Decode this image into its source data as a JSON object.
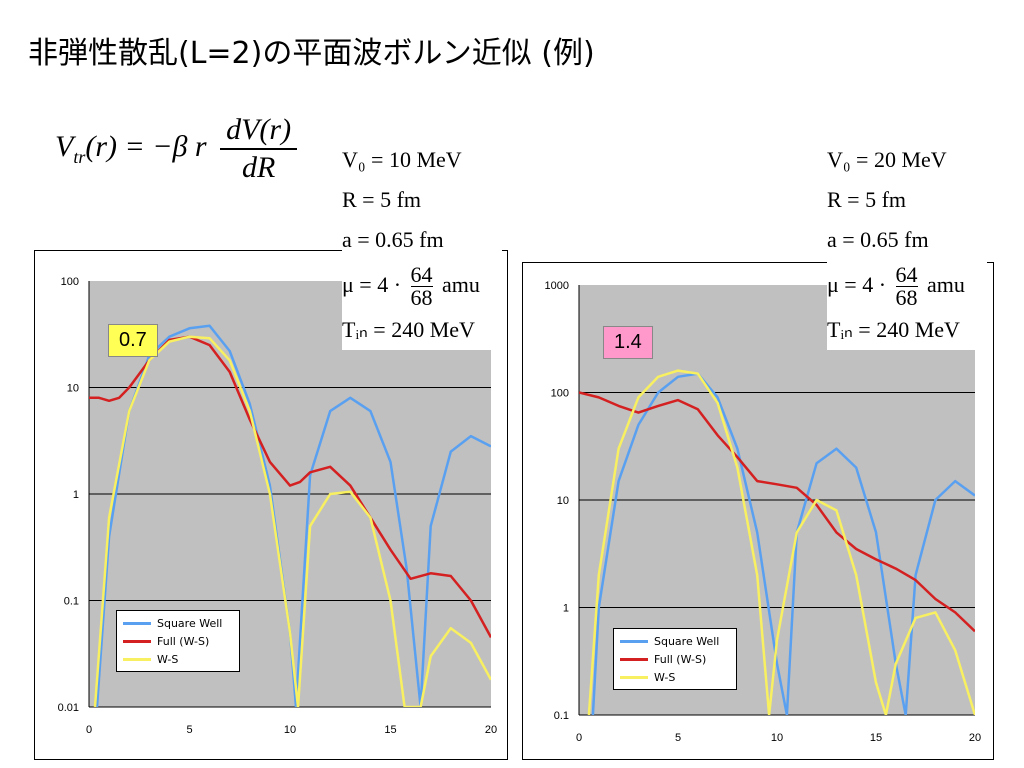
{
  "title": "非弾性散乱(L=2)の平面波ボルン近似 (例)",
  "formula": {
    "lhs_v": "V",
    "lhs_sub": "tr",
    "lhs_arg": "(r)",
    "eq": "= −β r",
    "num": "dV(r)",
    "den": "dR"
  },
  "params_left": {
    "v0": "V₀ = 10 MeV",
    "r": "R = 5 fm",
    "a": "a = 0.65 fm",
    "mu_prefix": "μ = 4 ·",
    "mu_num": "64",
    "mu_den": "68",
    "mu_unit": "amu",
    "tin": "Tᵢₙ = 240 MeV"
  },
  "params_right": {
    "v0": "V₀ = 20 MeV",
    "r": "R = 5 fm",
    "a": "a = 0.65 fm",
    "mu_prefix": "μ = 4 ·",
    "mu_num": "64",
    "mu_den": "68",
    "mu_unit": "amu",
    "tin": "Tᵢₙ = 240 MeV"
  },
  "badges": {
    "left": "0.7",
    "right": "1.4",
    "left_color": "#ffff55",
    "right_color": "#ff99cc"
  },
  "colors": {
    "plot_bg": "#c0c0c0",
    "square_well": "#5aa0f0",
    "full": "#d42020",
    "ws": "#f8f060"
  },
  "chart_data": [
    {
      "type": "line",
      "xlim": [
        0,
        20
      ],
      "ylim": [
        0.01,
        100
      ],
      "yscale": "log",
      "xticks": [
        "0",
        "5",
        "10",
        "15",
        "20"
      ],
      "yticks": [
        "0.01",
        "0.1",
        "1",
        "10",
        "100"
      ],
      "grid": "horizontal",
      "legend_position": "bottom-left",
      "series": [
        {
          "name": "Square Well",
          "x": [
            0.4,
            1,
            2,
            3,
            4,
            5,
            6,
            7,
            8,
            9,
            10,
            10.3,
            11,
            12,
            13,
            14,
            15,
            15.8,
            16.5,
            17,
            18,
            19,
            20
          ],
          "y": [
            0.01,
            0.4,
            6,
            20,
            30,
            36,
            38,
            22,
            7,
            1.2,
            0.05,
            0.01,
            1.5,
            6,
            8,
            6,
            2,
            0.2,
            0.01,
            0.5,
            2.5,
            3.5,
            2.8
          ]
        },
        {
          "name": "Full (W-S)",
          "x": [
            0,
            0.5,
            1,
            1.5,
            2,
            3,
            4,
            5,
            6,
            7,
            8,
            9,
            10,
            10.5,
            11,
            12,
            13,
            14,
            15,
            16,
            17,
            18,
            19,
            20
          ],
          "y": [
            8,
            8,
            7.5,
            8,
            10,
            18,
            28,
            30,
            25,
            14,
            5,
            2,
            1.2,
            1.3,
            1.6,
            1.8,
            1.2,
            0.6,
            0.3,
            0.16,
            0.18,
            0.17,
            0.1,
            0.045
          ]
        },
        {
          "name": "W-S",
          "x": [
            0.3,
            1,
            2,
            3,
            4,
            5,
            6,
            7,
            8,
            9,
            10,
            10.4,
            11,
            12,
            13,
            14,
            15,
            15.7,
            16.5,
            17,
            18,
            19,
            20
          ],
          "y": [
            0.01,
            0.6,
            6,
            18,
            27,
            30,
            29,
            18,
            6,
            1,
            0.05,
            0.01,
            0.5,
            1,
            1.05,
            0.6,
            0.1,
            0.01,
            0.01,
            0.03,
            0.055,
            0.04,
            0.018
          ]
        }
      ]
    },
    {
      "type": "line",
      "xlim": [
        0,
        20
      ],
      "ylim": [
        0.1,
        1000
      ],
      "yscale": "log",
      "xticks": [
        "0",
        "5",
        "10",
        "15",
        "20"
      ],
      "yticks": [
        "0.1",
        "1",
        "10",
        "100",
        "1000"
      ],
      "grid": "horizontal",
      "legend_position": "bottom-left",
      "series": [
        {
          "name": "Square Well",
          "x": [
            0.7,
            1,
            2,
            3,
            4,
            5,
            6,
            7,
            8,
            9,
            10,
            10.5,
            11,
            12,
            13,
            14,
            15,
            16,
            16.5,
            17,
            18,
            19,
            20
          ],
          "y": [
            0.1,
            1,
            15,
            50,
            100,
            140,
            150,
            90,
            30,
            5,
            0.3,
            0.1,
            5,
            22,
            30,
            20,
            5,
            0.3,
            0.1,
            2,
            10,
            15,
            11
          ]
        },
        {
          "name": "Full (W-S)",
          "x": [
            0,
            1,
            2,
            3,
            4,
            5,
            6,
            7,
            8,
            9,
            10,
            11,
            12,
            13,
            14,
            15,
            16,
            17,
            18,
            19,
            20
          ],
          "y": [
            100,
            90,
            75,
            65,
            75,
            85,
            70,
            40,
            25,
            15,
            14,
            13,
            9,
            5,
            3.5,
            2.8,
            2.3,
            1.8,
            1.2,
            0.9,
            0.6
          ]
        },
        {
          "name": "W-S",
          "x": [
            0.5,
            1,
            2,
            3,
            4,
            5,
            6,
            7,
            8,
            9,
            9.6,
            10,
            11,
            12,
            13,
            14,
            15,
            15.5,
            16,
            17,
            18,
            19,
            20
          ],
          "y": [
            0.1,
            2,
            30,
            90,
            140,
            160,
            150,
            80,
            20,
            2,
            0.1,
            0.5,
            5,
            10,
            8,
            2,
            0.2,
            0.1,
            0.3,
            0.8,
            0.9,
            0.4,
            0.1
          ]
        }
      ]
    }
  ]
}
